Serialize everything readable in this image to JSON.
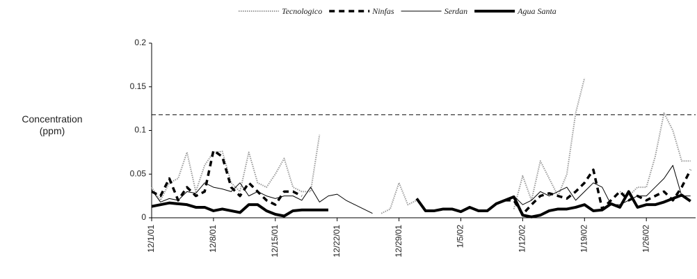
{
  "chart_data": {
    "type": "line",
    "ylabel": "Concentration (ppm)",
    "categories": [
      "12/1/01",
      null,
      null,
      null,
      null,
      null,
      null,
      "12/8/01",
      null,
      null,
      null,
      null,
      null,
      null,
      "12/15/01",
      null,
      null,
      null,
      null,
      null,
      null,
      "12/22/01",
      null,
      null,
      null,
      null,
      null,
      null,
      "12/29/01",
      null,
      null,
      null,
      null,
      null,
      null,
      "1/5/02",
      null,
      null,
      null,
      null,
      null,
      null,
      "1/12/02",
      null,
      null,
      null,
      null,
      null,
      null,
      "1/19/02",
      null,
      null,
      null,
      null,
      null,
      null,
      "1/26/02",
      null,
      null,
      null,
      null,
      null
    ],
    "series": [
      {
        "name": "Tecnologico",
        "color": "#9a9a9a",
        "dash": "dot",
        "width": 2,
        "values": [
          0.035,
          0.02,
          0.04,
          0.045,
          0.075,
          0.03,
          0.06,
          0.075,
          0.076,
          0.04,
          0.03,
          0.075,
          0.04,
          0.035,
          0.05,
          0.068,
          0.035,
          0.03,
          0.03,
          0.095,
          null,
          null,
          null,
          null,
          null,
          null,
          0.005,
          0.01,
          0.04,
          0.015,
          0.02,
          null,
          null,
          null,
          null,
          null,
          null,
          null,
          null,
          null,
          null,
          0.01,
          0.048,
          0.02,
          0.065,
          0.045,
          0.025,
          0.05,
          0.12,
          0.16,
          null,
          null,
          null,
          0.03,
          0.025,
          0.035,
          0.035,
          0.07,
          0.12,
          0.1,
          0.065,
          0.065
        ]
      },
      {
        "name": "Ninfas",
        "color": "#000000",
        "dash": "dash",
        "width": 3.5,
        "values": [
          0.03,
          0.025,
          0.045,
          0.02,
          0.035,
          0.025,
          0.03,
          0.077,
          0.07,
          0.035,
          0.025,
          0.04,
          0.03,
          0.02,
          0.015,
          0.03,
          0.03,
          0.025,
          null,
          null,
          null,
          null,
          null,
          null,
          null,
          null,
          null,
          null,
          null,
          null,
          null,
          null,
          null,
          null,
          null,
          null,
          null,
          null,
          null,
          null,
          0.02,
          0.02,
          0.004,
          0.015,
          0.025,
          0.028,
          0.025,
          0.022,
          0.03,
          0.04,
          0.055,
          0.01,
          0.02,
          0.03,
          0.02,
          0.025,
          0.02,
          0.025,
          0.03,
          0.02,
          0.035,
          0.055
        ]
      },
      {
        "name": "Serdan",
        "color": "#000000",
        "dash": "solid",
        "width": 1,
        "values": [
          0.032,
          0.018,
          0.022,
          0.02,
          0.03,
          0.028,
          0.04,
          0.035,
          0.033,
          0.03,
          0.04,
          0.025,
          0.03,
          0.025,
          0.022,
          0.025,
          0.025,
          0.02,
          0.035,
          0.018,
          0.025,
          0.027,
          0.02,
          0.015,
          0.01,
          0.005,
          null,
          null,
          null,
          null,
          null,
          null,
          null,
          null,
          null,
          null,
          null,
          null,
          null,
          null,
          0.02,
          0.025,
          0.015,
          0.02,
          0.03,
          0.025,
          0.03,
          0.035,
          0.02,
          0.03,
          0.04,
          0.035,
          0.015,
          0.015,
          0.02,
          0.025,
          0.025,
          0.035,
          0.045,
          0.06,
          0.025,
          0.025
        ]
      },
      {
        "name": "Agua Santa",
        "color": "#000000",
        "dash": "solid",
        "width": 4,
        "values": [
          0.013,
          0.015,
          0.017,
          0.016,
          0.015,
          0.012,
          0.012,
          0.008,
          0.01,
          0.008,
          0.006,
          0.015,
          0.015,
          0.008,
          0.004,
          0.002,
          0.008,
          0.009,
          0.009,
          0.009,
          0.009,
          null,
          null,
          null,
          null,
          null,
          null,
          null,
          null,
          null,
          0.022,
          0.008,
          0.008,
          0.01,
          0.01,
          0.007,
          0.012,
          0.008,
          0.008,
          0.016,
          0.02,
          0.024,
          0.003,
          0.001,
          0.003,
          0.008,
          0.01,
          0.01,
          0.012,
          0.015,
          0.008,
          0.009,
          0.016,
          0.012,
          0.03,
          0.012,
          0.015,
          0.015,
          0.018,
          0.022,
          0.026,
          0.019
        ]
      }
    ],
    "reference_line": 0.118,
    "ylim": [
      0,
      0.2
    ],
    "yticks": [
      0,
      0.05,
      0.1,
      0.15,
      0.2
    ],
    "legend": "top"
  }
}
